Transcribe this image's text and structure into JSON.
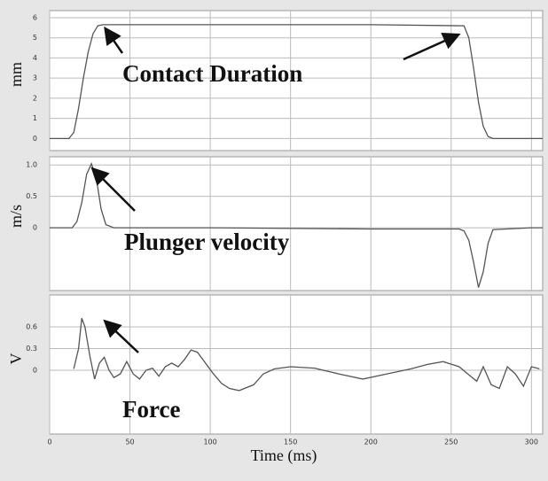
{
  "chart_data": [
    {
      "type": "line",
      "ylabel": "mm",
      "annotation": "Contact Duration",
      "x": [
        0,
        12,
        15,
        18,
        21,
        24,
        27,
        30,
        33,
        40,
        100,
        200,
        258,
        261,
        264,
        267,
        270,
        273,
        276,
        300,
        307
      ],
      "series": [
        {
          "name": "Contact Duration",
          "color": "#555555",
          "values": [
            0,
            0,
            0.3,
            1.5,
            3,
            4.3,
            5.2,
            5.6,
            5.65,
            5.65,
            5.65,
            5.65,
            5.6,
            5,
            3.5,
            1.8,
            0.6,
            0.1,
            0,
            0,
            0
          ]
        }
      ],
      "xlim": [
        0,
        307
      ],
      "xticks": [
        0,
        50,
        100,
        150,
        200,
        250,
        300
      ],
      "ylim": [
        -0.6,
        6.35
      ],
      "yticks": [
        0,
        1,
        2,
        3,
        4,
        5,
        6
      ],
      "grid": true
    },
    {
      "type": "line",
      "ylabel": "m/s",
      "annotation": "Plunger velocity",
      "x": [
        0,
        14,
        17,
        20,
        23,
        26,
        29,
        32,
        35,
        40,
        100,
        200,
        255,
        258,
        261,
        264,
        267,
        270,
        273,
        276,
        300,
        307
      ],
      "series": [
        {
          "name": "Plunger velocity",
          "color": "#555555",
          "values": [
            0,
            0,
            0.1,
            0.4,
            0.85,
            1.02,
            0.8,
            0.3,
            0.05,
            0,
            0,
            -0.02,
            -0.02,
            -0.05,
            -0.2,
            -0.55,
            -0.95,
            -0.7,
            -0.25,
            -0.03,
            0,
            0
          ]
        }
      ],
      "xlim": [
        0,
        307
      ],
      "xticks": [
        0,
        50,
        100,
        150,
        200,
        250,
        300
      ],
      "ylim": [
        -1.0,
        1.13
      ],
      "yticks": [
        0,
        {
          "value": 0.5,
          "label": "0.5"
        },
        {
          "value": 1,
          "label": "1.0"
        }
      ],
      "grid": true
    },
    {
      "type": "line",
      "ylabel": "V",
      "annotation": "Force",
      "xlabel": "Time (ms)",
      "x": [
        15,
        18,
        20,
        22,
        25,
        28,
        31,
        34,
        37,
        40,
        44,
        48,
        52,
        56,
        60,
        64,
        68,
        72,
        76,
        80,
        84,
        88,
        92,
        97,
        102,
        107,
        112,
        118,
        127,
        133,
        140,
        150,
        165,
        180,
        195,
        210,
        225,
        235,
        245,
        255,
        262,
        266,
        270,
        275,
        280,
        285,
        290,
        295,
        300,
        305
      ],
      "series": [
        {
          "name": "Force",
          "color": "#555555",
          "values": [
            0.02,
            0.3,
            0.72,
            0.6,
            0.2,
            -0.12,
            0.1,
            0.18,
            0.0,
            -0.1,
            -0.05,
            0.12,
            -0.05,
            -0.12,
            0.0,
            0.03,
            -0.08,
            0.05,
            0.1,
            0.05,
            0.15,
            0.28,
            0.25,
            0.1,
            -0.05,
            -0.18,
            -0.25,
            -0.28,
            -0.2,
            -0.05,
            0.02,
            0.05,
            0.03,
            -0.05,
            -0.12,
            -0.05,
            0.02,
            0.08,
            0.12,
            0.05,
            -0.08,
            -0.15,
            0.05,
            -0.2,
            -0.25,
            0.05,
            -0.05,
            -0.22,
            0.05,
            0.02
          ]
        }
      ],
      "xlim": [
        0,
        307
      ],
      "xticks": [
        0,
        50,
        100,
        150,
        200,
        250,
        300
      ],
      "ylim": [
        -0.88,
        1.04
      ],
      "yticks": [
        0,
        {
          "value": 0.3,
          "label": "0.3"
        },
        {
          "value": 0.6,
          "label": "0.6"
        }
      ],
      "grid": true
    }
  ]
}
